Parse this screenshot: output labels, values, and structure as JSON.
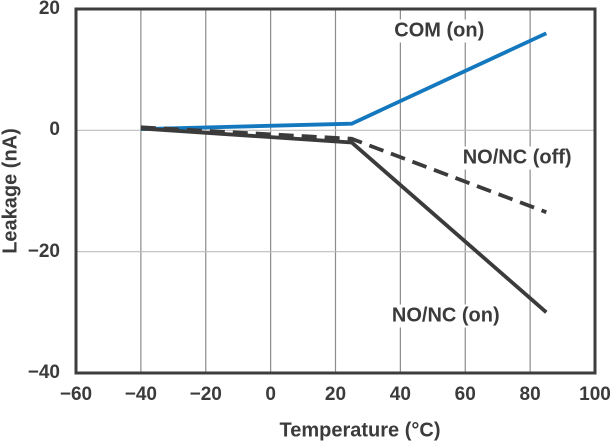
{
  "figure": {
    "background": "#ffffff"
  },
  "colors": {
    "accent_blue": "#1478be",
    "line_dark": "#3b3b3b",
    "grid_vertical": "#8c8c8c",
    "grid_horizontal": "#bdbdbd",
    "frame": "#3d3d3d",
    "text": "#3b3b3b"
  },
  "chart_data": {
    "type": "line",
    "title": "",
    "xlabel": "Temperature (°C)",
    "ylabel": "Leakage (nA)",
    "xlim": [
      -60,
      100
    ],
    "ylim": [
      -40,
      20
    ],
    "xticks": [
      -60,
      -40,
      -20,
      0,
      20,
      40,
      60,
      80,
      100
    ],
    "yticks": [
      20,
      0,
      -20,
      -40
    ],
    "grid": true,
    "legend_position": "inline-annotations",
    "series": [
      {
        "name": "COM (on)",
        "style": "solid",
        "color": "#1478be",
        "x": [
          -40,
          25,
          85
        ],
        "y": [
          0.2,
          1.1,
          16
        ]
      },
      {
        "name": "NO/NC (off)",
        "style": "dashed",
        "color": "#3b3b3b",
        "x": [
          -40,
          25,
          85
        ],
        "y": [
          0.5,
          -1.4,
          -13.5
        ]
      },
      {
        "name": "NO/NC (on)",
        "style": "solid",
        "color": "#3b3b3b",
        "x": [
          -40,
          25,
          85
        ],
        "y": [
          0.3,
          -2,
          -30
        ]
      }
    ],
    "annotations": [
      {
        "text": "COM (on)",
        "x": 52,
        "y": 16.4
      },
      {
        "text": "NO/NC (off)",
        "x": 76,
        "y": -4.6
      },
      {
        "text": "NO/NC (on)",
        "x": 54,
        "y": -30.6
      }
    ]
  }
}
